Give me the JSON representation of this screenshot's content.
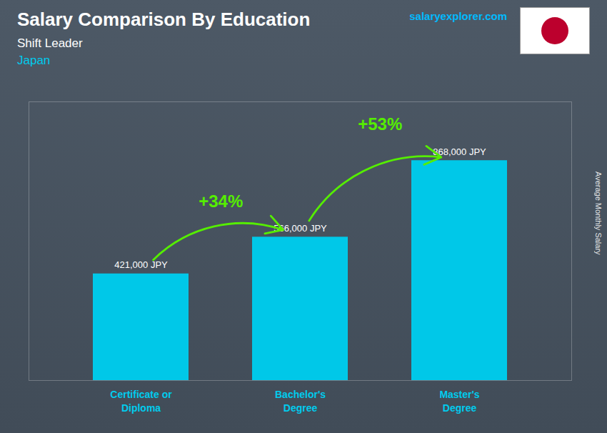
{
  "chart_data": {
    "type": "bar",
    "title": "Salary Comparison By Education",
    "subtitle": "Shift Leader",
    "annotations": [
      "Japan",
      "salaryexplorer.com"
    ],
    "y_label": "Average Monthly Salary",
    "categories": [
      "Certificate or\nDiploma",
      "Bachelor's\nDegree",
      "Master's\nDegree"
    ],
    "values": [
      421000,
      566000,
      868000
    ],
    "value_labels": [
      "421,000 JPY",
      "566,000 JPY",
      "868,000 JPY"
    ],
    "change_labels": [
      "+34%",
      "+53%"
    ],
    "color": "#00c8e8",
    "ylim": [
      0,
      1100000
    ],
    "data_labels": true,
    "tick_labels": "x",
    "grid": false
  }
}
